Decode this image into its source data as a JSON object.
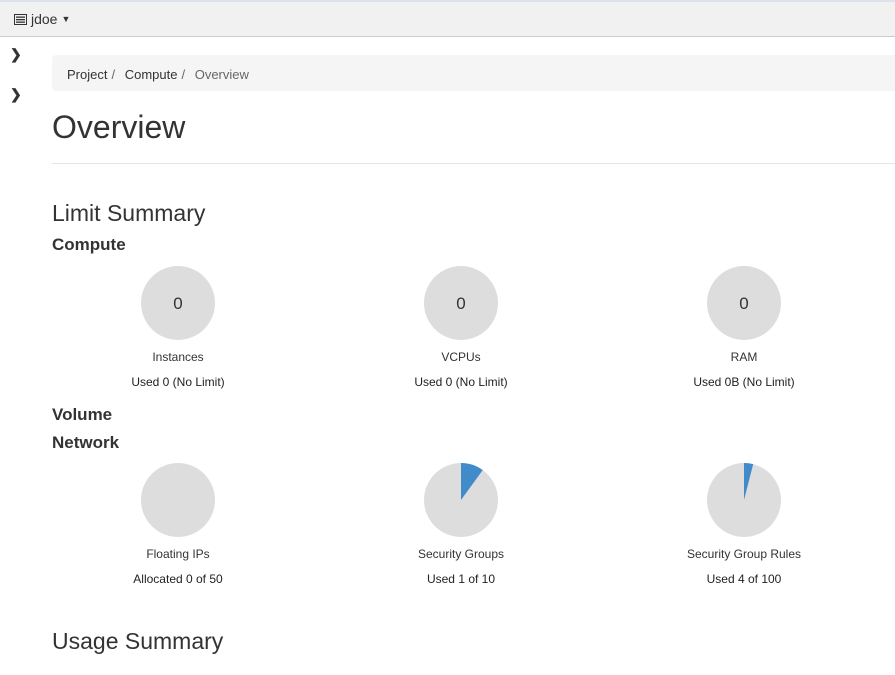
{
  "topbar": {
    "user": "jdoe",
    "icon": "project-icon"
  },
  "breadcrumb": [
    "Project",
    "Compute",
    "Overview"
  ],
  "page_title": "Overview",
  "limit_summary": "Limit Summary",
  "sections": {
    "compute": "Compute",
    "volume": "Volume",
    "network": "Network"
  },
  "compute": [
    {
      "value": "0",
      "label": "Instances",
      "used_text": "Used 0 (No Limit)",
      "fraction": 0
    },
    {
      "value": "0",
      "label": "VCPUs",
      "used_text": "Used 0 (No Limit)",
      "fraction": 0
    },
    {
      "value": "0",
      "label": "RAM",
      "used_text": "Used 0B (No Limit)",
      "fraction": 0
    }
  ],
  "network": [
    {
      "label": "Floating IPs",
      "used_text": "Allocated 0 of 50",
      "fraction": 0
    },
    {
      "label": "Security Groups",
      "used_text": "Used 1 of 10",
      "fraction": 0.1
    },
    {
      "label": "Security Group Rules",
      "used_text": "Used 4 of 100",
      "fraction": 0.04
    }
  ],
  "usage_summary": "Usage Summary",
  "colors": {
    "pie_bg": "#dddddd",
    "pie_used": "#428bca"
  }
}
